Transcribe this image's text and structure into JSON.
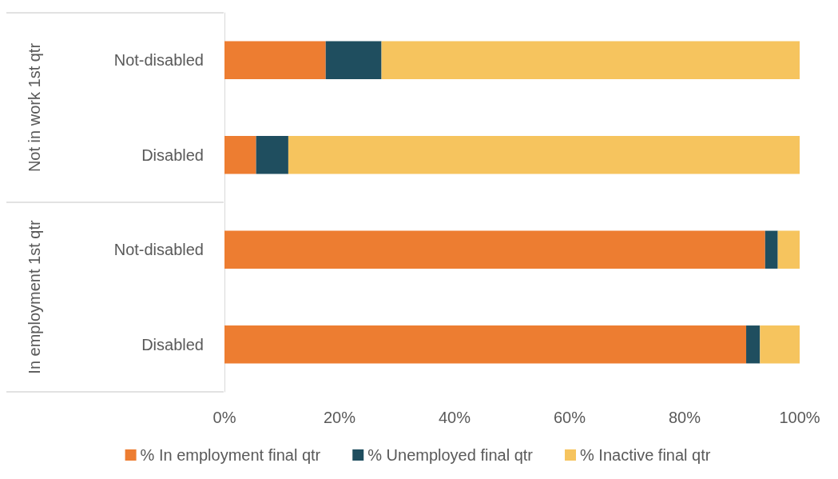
{
  "chart_data": {
    "type": "bar",
    "orientation": "horizontal",
    "stacked": true,
    "categories": [
      "Not-disabled",
      "Disabled",
      "Not-disabled",
      "Disabled"
    ],
    "annotations": [
      "Not in work 1st qtr",
      "In employment 1st qtr"
    ],
    "series": [
      {
        "name": "% In employment final qtr",
        "color": "#ed7d31",
        "values": [
          17.6,
          5.5,
          94.0,
          90.7
        ]
      },
      {
        "name": "% Unemployed final qtr",
        "color": "#1f4e5f",
        "values": [
          9.7,
          5.6,
          2.2,
          2.4
        ]
      },
      {
        "name": "% Inactive final qtr",
        "color": "#f6c45e",
        "values": [
          72.7,
          88.9,
          3.8,
          6.9
        ]
      }
    ],
    "xlim": [
      0,
      100
    ],
    "xticks": [
      {
        "value": 0,
        "label": "0%"
      },
      {
        "value": 20,
        "label": "20%"
      },
      {
        "value": 40,
        "label": "40%"
      },
      {
        "value": 60,
        "label": "60%"
      },
      {
        "value": 80,
        "label": "80%"
      },
      {
        "value": 100,
        "label": "100%"
      }
    ],
    "grid": false,
    "legend": "bottom"
  }
}
